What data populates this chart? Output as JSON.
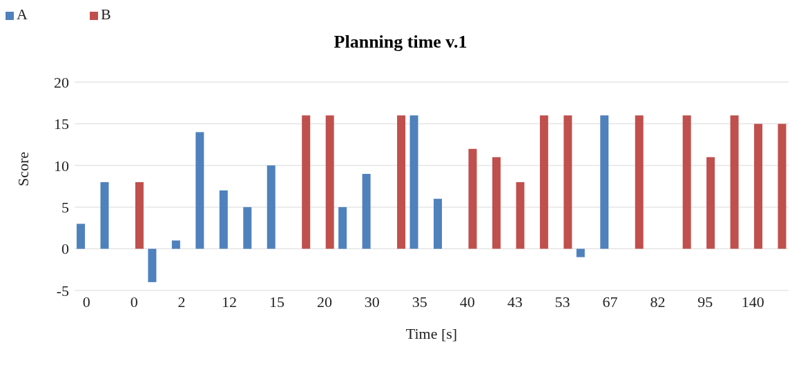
{
  "chart_data": {
    "type": "bar",
    "title": "Planning time v.1",
    "xlabel": "Time [s]",
    "ylabel": "Score",
    "categories": [
      "0",
      null,
      "0",
      null,
      "2",
      null,
      "12",
      null,
      "15",
      null,
      "20",
      null,
      "30",
      null,
      "35",
      null,
      "40",
      null,
      "43",
      null,
      "53",
      null,
      "67",
      null,
      "82",
      null,
      "95",
      null,
      "140",
      null
    ],
    "series": [
      {
        "name": "A",
        "color": "#4f81bd",
        "values": [
          3,
          8,
          null,
          -4,
          1,
          14,
          7,
          5,
          10,
          null,
          null,
          5,
          9,
          null,
          16,
          6,
          null,
          null,
          null,
          null,
          null,
          -1,
          16,
          null,
          null,
          null,
          null,
          null,
          null,
          null
        ]
      },
      {
        "name": "B",
        "color": "#c0504d",
        "values": [
          null,
          null,
          8,
          null,
          null,
          null,
          null,
          null,
          null,
          16,
          16,
          null,
          null,
          16,
          null,
          null,
          12,
          11,
          8,
          16,
          16,
          null,
          null,
          16,
          null,
          16,
          11,
          16,
          15,
          15
        ]
      }
    ],
    "ylim": [
      -5,
      20
    ],
    "yticks": [
      -5,
      0,
      5,
      10,
      15,
      20
    ],
    "grid": "y",
    "legend": "top left"
  }
}
